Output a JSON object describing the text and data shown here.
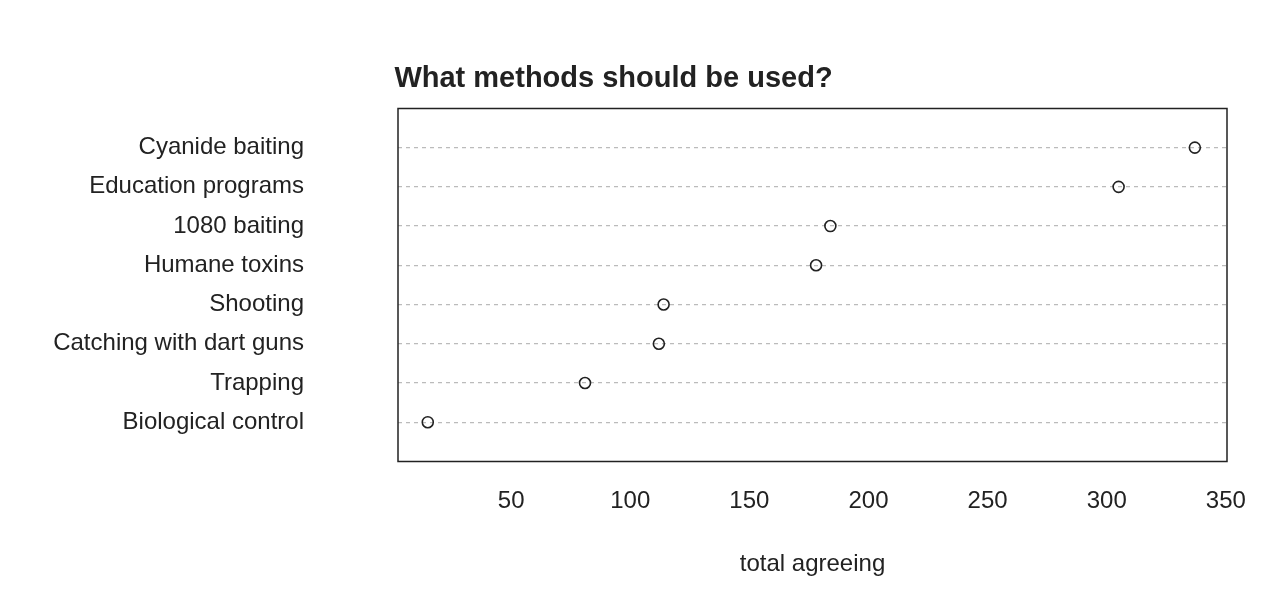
{
  "chart_data": {
    "type": "scatter",
    "orientation": "horizontal",
    "title": "What methods should be used?",
    "categories": [
      "Cyanide baiting",
      "Education programs",
      "1080 baiting",
      "Humane toxins",
      "Shooting",
      "Catching with dart guns",
      "Trapping",
      "Biological control"
    ],
    "values": [
      337,
      305,
      184,
      178,
      114,
      112,
      81,
      15
    ],
    "color": "#222222",
    "xlim": [
      2.5,
      350.5
    ],
    "xticks": [
      50,
      100,
      150,
      200,
      250,
      300,
      350
    ],
    "xlabel": "total agreeing",
    "grid": "y",
    "marker": "circle",
    "legend": false
  }
}
